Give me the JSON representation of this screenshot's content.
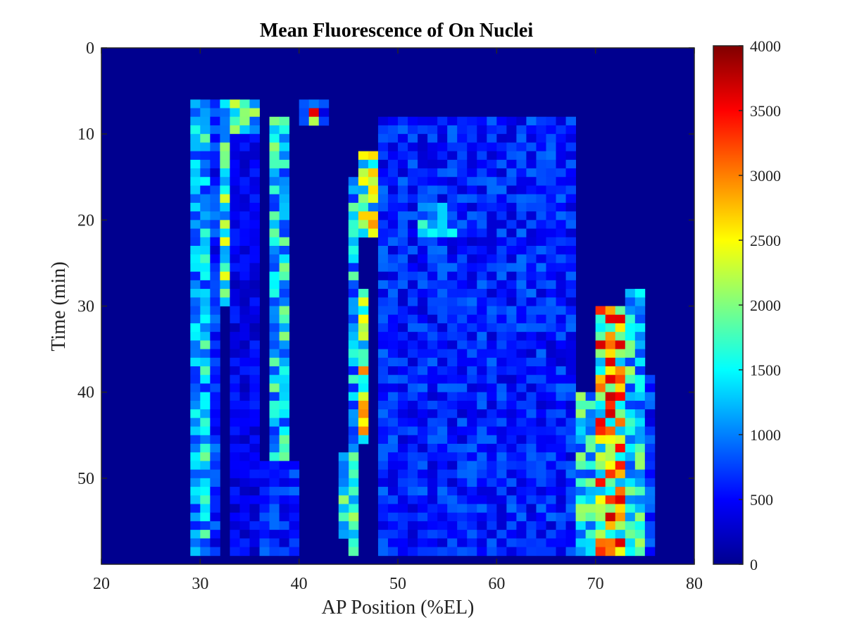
{
  "chart_data": {
    "type": "heatmap",
    "title": "Mean Fluorescence of On Nuclei",
    "xlabel": "AP Position (%EL)",
    "ylabel": "Time (min)",
    "xlim": [
      20,
      80
    ],
    "ylim": [
      0,
      60
    ],
    "y_reversed": true,
    "xticks": [
      "20",
      "30",
      "40",
      "50",
      "60",
      "70",
      "80"
    ],
    "yticks": [
      "0",
      "10",
      "20",
      "30",
      "40",
      "50"
    ],
    "colormap": "jet",
    "colorbar": {
      "range": [
        0,
        4000
      ],
      "ticks": [
        "0",
        "500",
        "1000",
        "1500",
        "2000",
        "2500",
        "3000",
        "3500",
        "4000"
      ]
    },
    "grid": false,
    "background_value": 0,
    "bins": {
      "x_start": 20,
      "x_step": 1,
      "y_start": 0,
      "y_step": 1
    },
    "data_columns": [
      {
        "x": [
          29,
          30
        ],
        "t": [
          6,
          59
        ],
        "level": 1100
      },
      {
        "x": [
          30,
          31
        ],
        "t": [
          6,
          59
        ],
        "level": 1350
      },
      {
        "x": [
          31,
          32
        ],
        "t": [
          6,
          59
        ],
        "level": 700
      },
      {
        "x": [
          32,
          33
        ],
        "t": [
          6,
          30
        ],
        "level": 1700
      },
      {
        "x": [
          33,
          36
        ],
        "t": [
          6,
          10
        ],
        "level": 1800
      },
      {
        "x": [
          33,
          36
        ],
        "t": [
          10,
          59
        ],
        "level": 450
      },
      {
        "x": [
          37,
          39
        ],
        "t": [
          8,
          48
        ],
        "level": 1450
      },
      {
        "x": [
          36,
          40
        ],
        "t": [
          48,
          59
        ],
        "level": 650
      },
      {
        "x": [
          40,
          43
        ],
        "t": [
          6,
          9
        ],
        "level": 700
      },
      {
        "x": [
          45,
          46
        ],
        "t": [
          15,
          59
        ],
        "level": 1350
      },
      {
        "x": [
          46,
          47
        ],
        "t": [
          28,
          46
        ],
        "level": 2300
      },
      {
        "x": [
          46,
          48
        ],
        "t": [
          12,
          22
        ],
        "level": 2000
      },
      {
        "x": [
          44,
          46
        ],
        "t": [
          47,
          57
        ],
        "level": 1550
      },
      {
        "x": [
          48,
          68
        ],
        "t": [
          8,
          59
        ],
        "level": 650
      },
      {
        "x": [
          52,
          56
        ],
        "t": [
          18,
          22
        ],
        "level": 1200
      },
      {
        "x": [
          68,
          70
        ],
        "t": [
          40,
          59
        ],
        "level": 1500
      },
      {
        "x": [
          70,
          73
        ],
        "t": [
          30,
          59
        ],
        "level": 2600
      },
      {
        "x": [
          73,
          75
        ],
        "t": [
          28,
          59
        ],
        "level": 1500
      },
      {
        "x": [
          75,
          76
        ],
        "t": [
          38,
          59
        ],
        "level": 700
      }
    ],
    "hot_cells": [
      {
        "x": 41,
        "t": 7,
        "value": 3600
      },
      {
        "x": 41,
        "t": 8,
        "value": 2200
      },
      {
        "x": 72,
        "t": 40,
        "value": 3500
      },
      {
        "x": 71,
        "t": 49,
        "value": 3300
      },
      {
        "x": 71,
        "t": 52,
        "value": 3300
      },
      {
        "x": 71,
        "t": 44,
        "value": 3100
      }
    ]
  }
}
